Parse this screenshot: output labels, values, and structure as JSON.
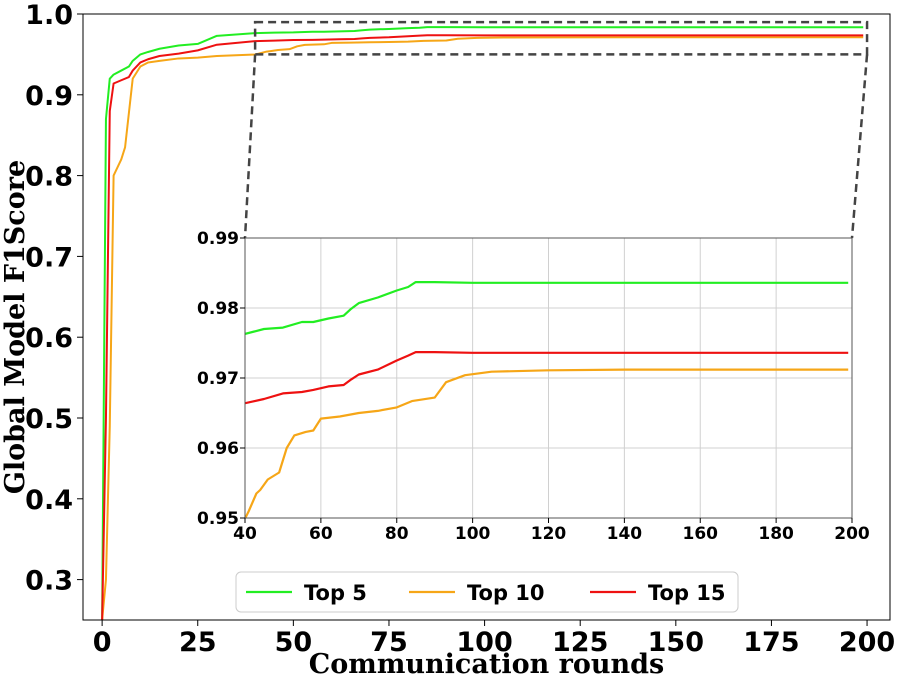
{
  "chart_data": {
    "type": "line",
    "title": "",
    "xlabel": "Communication rounds",
    "ylabel": "Global Model F1Score",
    "xlim": [
      -5,
      206
    ],
    "ylim": [
      0.25,
      1.0
    ],
    "xticks": [
      0,
      25,
      50,
      75,
      100,
      125,
      150,
      175,
      200
    ],
    "yticks": [
      0.3,
      0.4,
      0.5,
      0.6,
      0.7,
      0.8,
      0.9,
      1.0
    ],
    "grid": false,
    "legend_position": "bottom-center",
    "series": [
      {
        "name": "Top 5",
        "color": "#22ee22",
        "x": [
          0,
          1,
          2,
          3,
          5,
          7,
          8,
          10,
          12,
          15,
          20,
          25,
          30,
          40,
          45,
          50,
          55,
          58,
          62,
          66,
          68,
          70,
          75,
          80,
          83,
          85,
          90,
          100,
          120,
          150,
          199
        ],
        "y": [
          0.25,
          0.87,
          0.92,
          0.925,
          0.93,
          0.935,
          0.942,
          0.95,
          0.953,
          0.957,
          0.961,
          0.963,
          0.973,
          0.9763,
          0.977,
          0.9772,
          0.978,
          0.978,
          0.9785,
          0.9789,
          0.9799,
          0.9807,
          0.9815,
          0.9825,
          0.983,
          0.9837,
          0.9837,
          0.9836,
          0.9836,
          0.9836,
          0.9836
        ]
      },
      {
        "name": "Top 10",
        "color": "#f6a617",
        "x": [
          0,
          1,
          2,
          3,
          5,
          6,
          8,
          10,
          12,
          15,
          20,
          25,
          30,
          35,
          40,
          41,
          43,
          44,
          46,
          49,
          51,
          53,
          56,
          58,
          60,
          65,
          70,
          75,
          80,
          84,
          90,
          93,
          98,
          105,
          120,
          140,
          160,
          180,
          199
        ],
        "y": [
          0.25,
          0.3,
          0.49,
          0.8,
          0.82,
          0.835,
          0.92,
          0.935,
          0.94,
          0.942,
          0.945,
          0.946,
          0.948,
          0.949,
          0.9499,
          0.951,
          0.9535,
          0.954,
          0.9555,
          0.9565,
          0.96,
          0.9618,
          0.9623,
          0.9625,
          0.9642,
          0.9645,
          0.965,
          0.9653,
          0.9658,
          0.9667,
          0.9672,
          0.9694,
          0.9704,
          0.9709,
          0.9711,
          0.9712,
          0.9712,
          0.9712,
          0.9712
        ]
      },
      {
        "name": "Top 15",
        "color": "#ee1111",
        "x": [
          0,
          1,
          2,
          3,
          5,
          7,
          8,
          10,
          12,
          15,
          20,
          25,
          30,
          40,
          45,
          50,
          55,
          58,
          62,
          66,
          68,
          70,
          75,
          80,
          83,
          85,
          90,
          100,
          120,
          150,
          199
        ],
        "y": [
          0.25,
          0.5,
          0.88,
          0.914,
          0.918,
          0.922,
          0.93,
          0.94,
          0.944,
          0.948,
          0.951,
          0.955,
          0.962,
          0.9664,
          0.967,
          0.9678,
          0.968,
          0.9683,
          0.9688,
          0.969,
          0.9698,
          0.9705,
          0.9712,
          0.9725,
          0.9732,
          0.9737,
          0.9737,
          0.9736,
          0.9736,
          0.9736,
          0.9736
        ]
      }
    ],
    "inset": {
      "xlim": [
        40,
        200
      ],
      "ylim": [
        0.95,
        0.99
      ],
      "xticks": [
        40,
        60,
        80,
        100,
        120,
        140,
        160,
        180,
        200
      ],
      "yticks": [
        0.95,
        0.96,
        0.97,
        0.98,
        0.99
      ],
      "grid": true,
      "zoom_region": {
        "x": [
          40,
          200
        ],
        "y": [
          0.95,
          0.99
        ]
      }
    }
  }
}
